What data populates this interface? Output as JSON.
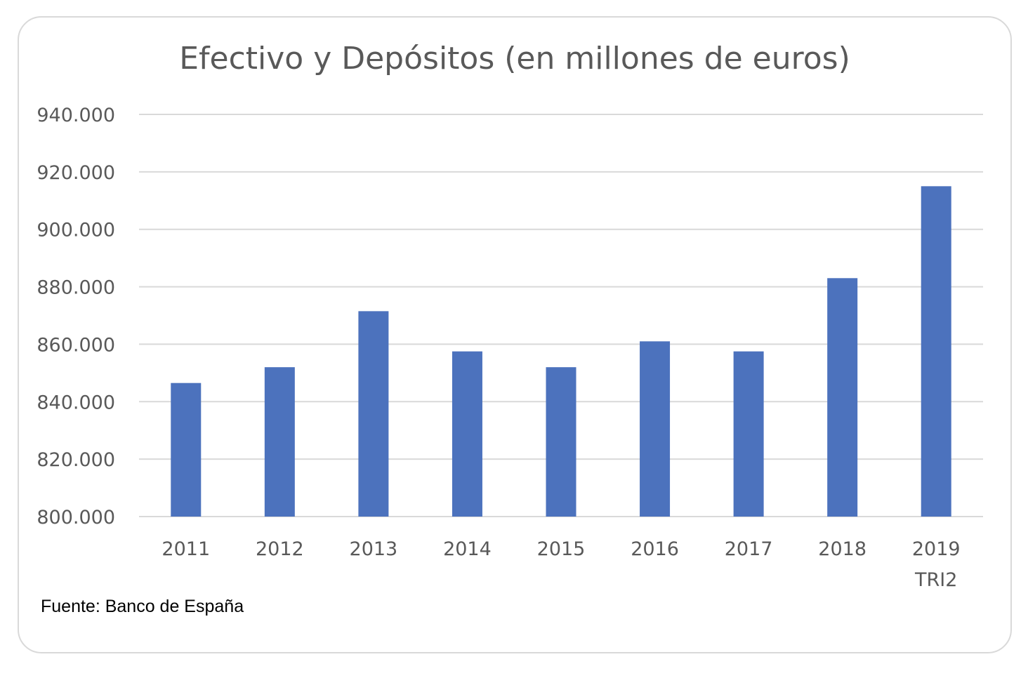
{
  "chart_data": {
    "type": "bar",
    "title": "Efectivo y Depósitos (en millones de euros)",
    "categories": [
      [
        "2011"
      ],
      [
        "2012"
      ],
      [
        "2013"
      ],
      [
        "2014"
      ],
      [
        "2015"
      ],
      [
        "2016"
      ],
      [
        "2017"
      ],
      [
        "2018"
      ],
      [
        "2019",
        "TRI2"
      ]
    ],
    "values": [
      846500,
      852000,
      871500,
      857500,
      852000,
      861000,
      857500,
      883000,
      915000
    ],
    "ylim": [
      800000,
      940000
    ],
    "yticks": [
      940000,
      920000,
      900000,
      880000,
      860000,
      840000,
      820000,
      800000
    ],
    "ytick_labels": [
      "940.000",
      "920.000",
      "900.000",
      "880.000",
      "860.000",
      "840.000",
      "820.000",
      "800.000"
    ],
    "grid": true,
    "bar_color": "#4c72bd",
    "xlabel": "",
    "ylabel": "",
    "source_note": "Fuente: Banco de España"
  }
}
